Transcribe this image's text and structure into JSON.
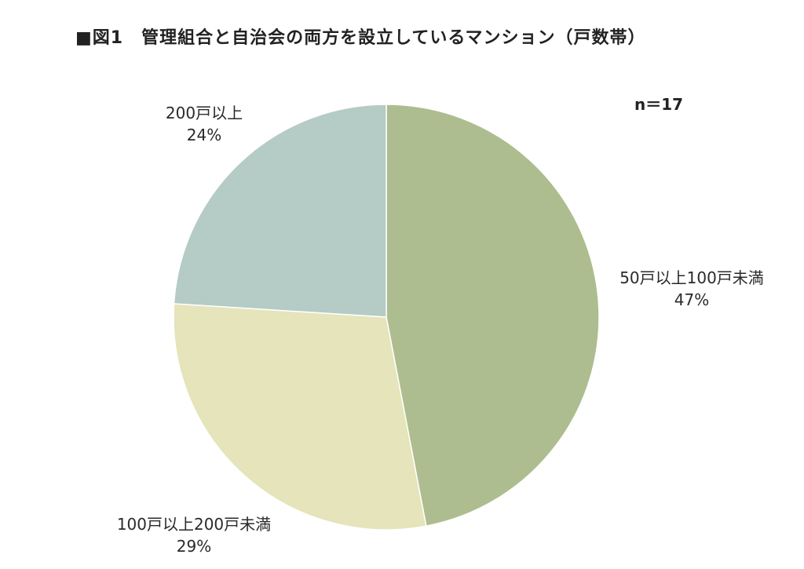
{
  "title": "■図1　管理組合と自治会の両方を設立しているマンション（戸数帯）",
  "sample_size": "n＝17",
  "chart_data": {
    "type": "pie",
    "title": "■図1　管理組合と自治会の両方を設立しているマンション（戸数帯）",
    "annotation": "n＝17",
    "categories": [
      "50戸以上100戸未満",
      "100戸以上200戸未満",
      "200戸以上"
    ],
    "values": [
      47,
      29,
      24
    ],
    "value_labels": [
      "47%",
      "29%",
      "24%"
    ],
    "unit": "%",
    "start_angle": "12 o'clock",
    "direction": "clockwise",
    "colors": [
      "#adbd8f",
      "#e5e4ba",
      "#b5cbc5"
    ],
    "legend": "none (data labels beside slices)"
  }
}
